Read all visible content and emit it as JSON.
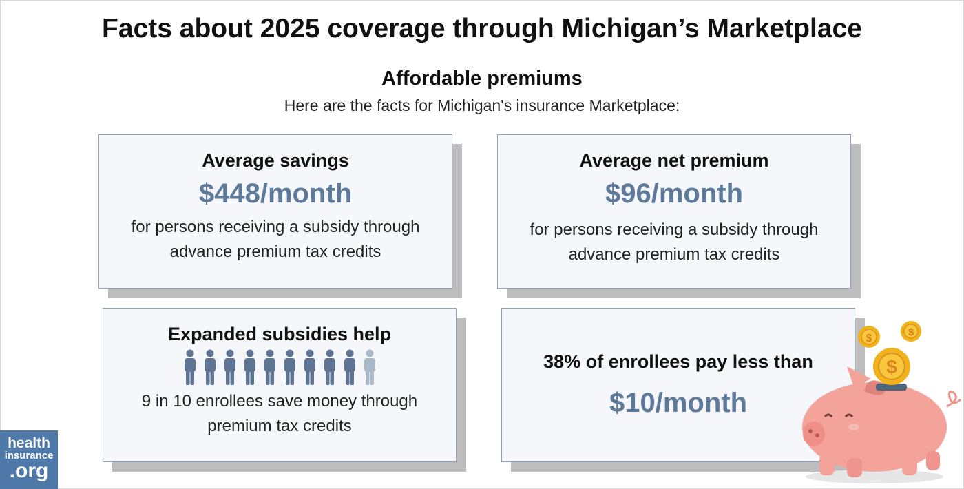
{
  "title": "Facts about 2025 coverage through Michigan’s Marketplace",
  "section": "Affordable premiums",
  "intro": "Here are the facts for Michigan's insurance Marketplace:",
  "cards": [
    {
      "heading": "Average savings",
      "value": "$448/month",
      "lines": [
        "for persons receiving a subsidy through",
        "advance premium tax credits"
      ]
    },
    {
      "heading": "Average net premium",
      "value": "$96/month",
      "lines": [
        "for persons receiving a subsidy through",
        "advance premium tax credits"
      ]
    },
    {
      "heading": "Expanded subsidies help",
      "lines": [
        "9 in 10 enrollees save money through",
        "premium tax credits"
      ]
    },
    {
      "heading": "38% of enrollees pay less than",
      "value": "$10/month"
    }
  ],
  "logo": [
    "health",
    "insurance",
    ".org"
  ]
}
